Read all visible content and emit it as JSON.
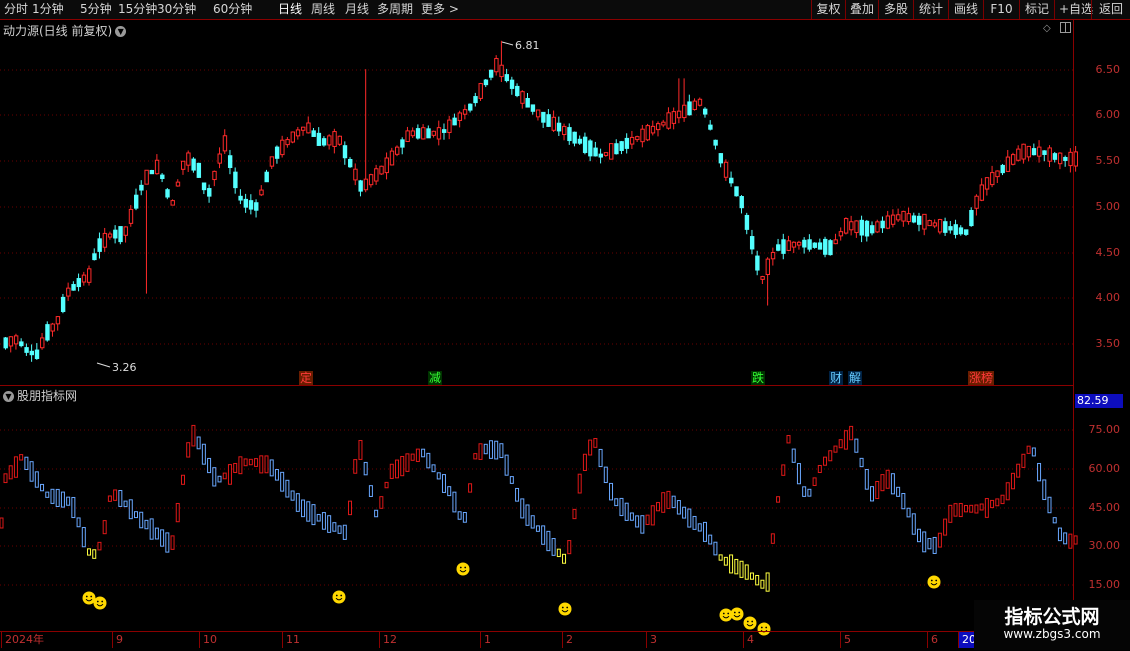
{
  "toolbar": {
    "periods": [
      "分时",
      "1分钟",
      "5分钟",
      "15分钟",
      "30分钟",
      "60分钟",
      "日线",
      "周线",
      "月线",
      "多周期",
      "更多 >"
    ],
    "active_period": "日线",
    "right_buttons": [
      "复权",
      "叠加",
      "多股",
      "统计",
      "画线",
      "F10",
      "标记",
      "+自选",
      "返回"
    ]
  },
  "main_panel": {
    "title": "动力源(日线 前复权)",
    "high_label": "6.81",
    "low_label": "3.26",
    "price_ticks": [
      "6.50",
      "6.00",
      "5.50",
      "5.00",
      "4.50",
      "4.00",
      "3.50"
    ],
    "events": [
      {
        "label": "定",
        "color": "#ff3a3a",
        "bg": "#6a1d00"
      },
      {
        "label": "减",
        "color": "#33ff33",
        "bg": "#003300"
      },
      {
        "label": "跌",
        "color": "#33ff33",
        "bg": "#003300"
      },
      {
        "label": "财",
        "color": "#66ccff",
        "bg": "#002244"
      },
      {
        "label": "解",
        "color": "#66ccff",
        "bg": "#002244"
      },
      {
        "label": "涨榜",
        "color": "#ff3a3a",
        "bg": "#6a1d00"
      }
    ]
  },
  "sub_panel": {
    "title": "股朋指标网",
    "last_value": "82.59",
    "ticks": [
      "75.00",
      "60.00",
      "45.00",
      "30.00",
      "15.00"
    ]
  },
  "date_axis": [
    "2024年",
    "9",
    "10",
    "11",
    "12",
    "1",
    "2",
    "3",
    "4",
    "5",
    "6",
    "20"
  ],
  "watermark": {
    "title": "指标公式网",
    "url": "www.zbgs3.com"
  },
  "colors": {
    "up": "#ff2a2a",
    "down": "#54ffff",
    "osc_up": "#e01818",
    "osc_down": "#6aa8ff",
    "osc_signal": "#ffff40",
    "grid": "#8a0000"
  },
  "icons": {
    "collapse": "chevron-down-icon",
    "settings": "diamond-icon",
    "panel_toggle": "window-icon",
    "signal": "smiley-icon"
  }
}
